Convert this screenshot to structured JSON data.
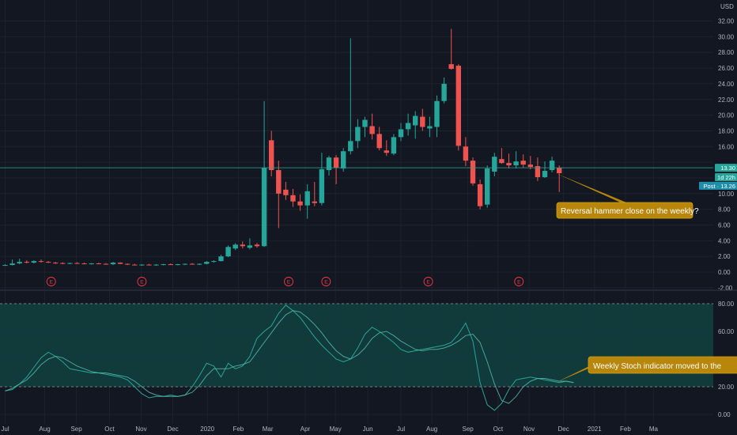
{
  "chart_data": [
    {
      "type": "candlestick",
      "title": "",
      "currency_label": "USD",
      "y_ticks": [
        -2,
        0,
        2,
        4,
        6,
        8,
        10,
        12,
        14,
        16,
        18,
        20,
        22,
        24,
        26,
        28,
        30,
        32
      ],
      "ylim": [
        -2,
        34
      ],
      "x_labels": [
        {
          "label": "Jul",
          "week": 0
        },
        {
          "label": "Aug",
          "week": 5.5
        },
        {
          "label": "Sep",
          "week": 9.9
        },
        {
          "label": "Oct",
          "week": 14.5
        },
        {
          "label": "Nov",
          "week": 18.9
        },
        {
          "label": "Dec",
          "week": 23.3
        },
        {
          "label": "2020",
          "week": 28.1
        },
        {
          "label": "Feb",
          "week": 32.4
        },
        {
          "label": "Mar",
          "week": 36.5
        },
        {
          "label": "Apr",
          "week": 41.7
        },
        {
          "label": "May",
          "week": 45.9
        },
        {
          "label": "Jun",
          "week": 50.4
        },
        {
          "label": "Jul",
          "week": 55.0
        },
        {
          "label": "Aug",
          "week": 59.3
        },
        {
          "label": "Sep",
          "week": 64.3
        },
        {
          "label": "Oct",
          "week": 68.5
        },
        {
          "label": "Nov",
          "week": 72.8
        },
        {
          "label": "Dec",
          "week": 77.6
        },
        {
          "label": "2021",
          "week": 81.9
        },
        {
          "label": "Feb",
          "week": 86.2
        },
        {
          "label": "Ma",
          "week": 90.1
        }
      ],
      "candles": [
        {
          "o": 0.85,
          "h": 1.0,
          "l": 0.8,
          "c": 0.9
        },
        {
          "o": 0.9,
          "h": 1.6,
          "l": 0.85,
          "c": 1.1
        },
        {
          "o": 1.1,
          "h": 1.7,
          "l": 1.0,
          "c": 1.3
        },
        {
          "o": 1.3,
          "h": 1.5,
          "l": 1.1,
          "c": 1.2
        },
        {
          "o": 1.2,
          "h": 1.5,
          "l": 1.1,
          "c": 1.4
        },
        {
          "o": 1.4,
          "h": 1.6,
          "l": 1.2,
          "c": 1.3
        },
        {
          "o": 1.3,
          "h": 1.4,
          "l": 1.15,
          "c": 1.2
        },
        {
          "o": 1.2,
          "h": 1.3,
          "l": 1.05,
          "c": 1.15
        },
        {
          "o": 1.15,
          "h": 1.25,
          "l": 1.0,
          "c": 1.1
        },
        {
          "o": 1.1,
          "h": 1.2,
          "l": 1.0,
          "c": 1.15
        },
        {
          "o": 1.15,
          "h": 1.25,
          "l": 1.05,
          "c": 1.1
        },
        {
          "o": 1.1,
          "h": 1.2,
          "l": 1.0,
          "c": 1.05
        },
        {
          "o": 1.05,
          "h": 1.15,
          "l": 0.95,
          "c": 1.1
        },
        {
          "o": 1.1,
          "h": 1.2,
          "l": 1.0,
          "c": 1.05
        },
        {
          "o": 1.05,
          "h": 1.15,
          "l": 0.95,
          "c": 1.0
        },
        {
          "o": 1.0,
          "h": 1.3,
          "l": 0.9,
          "c": 1.2
        },
        {
          "o": 1.2,
          "h": 1.25,
          "l": 1.0,
          "c": 1.05
        },
        {
          "o": 1.05,
          "h": 1.1,
          "l": 0.9,
          "c": 0.95
        },
        {
          "o": 0.95,
          "h": 1.05,
          "l": 0.85,
          "c": 0.9
        },
        {
          "o": 0.9,
          "h": 1.0,
          "l": 0.8,
          "c": 0.95
        },
        {
          "o": 0.95,
          "h": 1.05,
          "l": 0.85,
          "c": 0.9
        },
        {
          "o": 0.9,
          "h": 1.0,
          "l": 0.8,
          "c": 0.95
        },
        {
          "o": 0.95,
          "h": 1.05,
          "l": 0.85,
          "c": 1.0
        },
        {
          "o": 1.0,
          "h": 1.1,
          "l": 0.9,
          "c": 0.95
        },
        {
          "o": 0.95,
          "h": 1.05,
          "l": 0.85,
          "c": 1.0
        },
        {
          "o": 1.0,
          "h": 1.1,
          "l": 0.9,
          "c": 1.05
        },
        {
          "o": 1.05,
          "h": 1.15,
          "l": 0.95,
          "c": 1.0
        },
        {
          "o": 1.0,
          "h": 1.1,
          "l": 0.9,
          "c": 1.05
        },
        {
          "o": 1.05,
          "h": 1.4,
          "l": 1.0,
          "c": 1.3
        },
        {
          "o": 1.3,
          "h": 1.5,
          "l": 1.2,
          "c": 1.4
        },
        {
          "o": 1.4,
          "h": 2.2,
          "l": 1.35,
          "c": 2.0
        },
        {
          "o": 2.0,
          "h": 3.4,
          "l": 1.9,
          "c": 3.2
        },
        {
          "o": 3.0,
          "h": 3.7,
          "l": 2.8,
          "c": 3.5
        },
        {
          "o": 3.5,
          "h": 3.9,
          "l": 3.0,
          "c": 3.3
        },
        {
          "o": 3.1,
          "h": 4.3,
          "l": 2.9,
          "c": 3.4
        },
        {
          "o": 3.5,
          "h": 3.7,
          "l": 3.1,
          "c": 3.3
        },
        {
          "o": 3.3,
          "h": 21.8,
          "l": 3.2,
          "c": 13.3
        },
        {
          "o": 16.8,
          "h": 18.0,
          "l": 12.2,
          "c": 13.0
        },
        {
          "o": 13.0,
          "h": 14.2,
          "l": 5.6,
          "c": 10.0
        },
        {
          "o": 10.5,
          "h": 11.5,
          "l": 9.2,
          "c": 9.8
        },
        {
          "o": 9.8,
          "h": 10.6,
          "l": 8.3,
          "c": 9.0
        },
        {
          "o": 9.0,
          "h": 9.9,
          "l": 7.8,
          "c": 8.5
        },
        {
          "o": 8.5,
          "h": 11.2,
          "l": 6.8,
          "c": 10.3
        },
        {
          "o": 9.0,
          "h": 11.5,
          "l": 8.4,
          "c": 8.8
        },
        {
          "o": 8.8,
          "h": 15.2,
          "l": 8.5,
          "c": 13.1
        },
        {
          "o": 13.0,
          "h": 14.8,
          "l": 12.3,
          "c": 14.6
        },
        {
          "o": 14.6,
          "h": 14.9,
          "l": 11.2,
          "c": 13.3
        },
        {
          "o": 13.2,
          "h": 15.8,
          "l": 12.8,
          "c": 15.4
        },
        {
          "o": 15.4,
          "h": 29.8,
          "l": 15.0,
          "c": 16.7
        },
        {
          "o": 16.7,
          "h": 19.5,
          "l": 15.8,
          "c": 18.5
        },
        {
          "o": 18.5,
          "h": 19.8,
          "l": 17.2,
          "c": 19.4
        },
        {
          "o": 18.6,
          "h": 20.2,
          "l": 16.9,
          "c": 17.6
        },
        {
          "o": 17.6,
          "h": 18.5,
          "l": 15.5,
          "c": 15.8
        },
        {
          "o": 15.5,
          "h": 16.8,
          "l": 14.8,
          "c": 15.2
        },
        {
          "o": 15.1,
          "h": 17.6,
          "l": 14.9,
          "c": 17.2
        },
        {
          "o": 17.2,
          "h": 19.0,
          "l": 16.7,
          "c": 18.2
        },
        {
          "o": 18.2,
          "h": 20.2,
          "l": 17.4,
          "c": 19.0
        },
        {
          "o": 18.7,
          "h": 20.5,
          "l": 17.0,
          "c": 19.9
        },
        {
          "o": 19.8,
          "h": 20.8,
          "l": 18.0,
          "c": 18.5
        },
        {
          "o": 18.3,
          "h": 19.8,
          "l": 17.2,
          "c": 18.6
        },
        {
          "o": 18.5,
          "h": 22.5,
          "l": 17.2,
          "c": 21.8
        },
        {
          "o": 21.8,
          "h": 24.8,
          "l": 21.5,
          "c": 24.0
        },
        {
          "o": 26.5,
          "h": 31.0,
          "l": 25.8,
          "c": 25.9
        },
        {
          "o": 26.3,
          "h": 26.5,
          "l": 15.5,
          "c": 16.1
        },
        {
          "o": 16.0,
          "h": 17.2,
          "l": 13.5,
          "c": 14.2
        },
        {
          "o": 14.2,
          "h": 14.6,
          "l": 11.0,
          "c": 11.3
        },
        {
          "o": 11.2,
          "h": 11.8,
          "l": 8.0,
          "c": 8.4
        },
        {
          "o": 8.6,
          "h": 13.6,
          "l": 8.2,
          "c": 13.2
        },
        {
          "o": 12.8,
          "h": 15.2,
          "l": 12.2,
          "c": 14.7
        },
        {
          "o": 14.4,
          "h": 15.8,
          "l": 13.8,
          "c": 13.9
        },
        {
          "o": 13.9,
          "h": 15.1,
          "l": 13.2,
          "c": 13.6
        },
        {
          "o": 13.6,
          "h": 15.4,
          "l": 13.2,
          "c": 14.1
        },
        {
          "o": 14.2,
          "h": 15.0,
          "l": 13.3,
          "c": 13.7
        },
        {
          "o": 13.7,
          "h": 14.8,
          "l": 13.1,
          "c": 13.4
        },
        {
          "o": 13.5,
          "h": 14.6,
          "l": 11.6,
          "c": 12.1
        },
        {
          "o": 12.1,
          "h": 14.1,
          "l": 12.0,
          "c": 12.9
        },
        {
          "o": 13.0,
          "h": 14.7,
          "l": 12.7,
          "c": 14.2
        },
        {
          "o": 13.3,
          "h": 13.6,
          "l": 10.2,
          "c": 12.6
        }
      ],
      "earnings_weeks": [
        6.4,
        19.0,
        39.4,
        44.6,
        58.8,
        71.4
      ],
      "earnings_label": "E",
      "current_price": 13.26,
      "price_line": 13.3,
      "price_tags": [
        {
          "label": "13.30",
          "value": 13.3
        },
        {
          "label": "1d 22h",
          "value": 12.1
        },
        {
          "label": "Post · 13.26",
          "value": 11.0
        }
      ],
      "annotation": {
        "text": "Reversal hammer close on the weekly?",
        "week": 76.5,
        "value": 12.6
      }
    },
    {
      "type": "line",
      "title": "",
      "y_ticks": [
        0,
        20,
        40,
        60,
        80
      ],
      "ylim": [
        -4,
        90
      ],
      "band": [
        20,
        80
      ],
      "series": [
        {
          "values": [
            17,
            18,
            22,
            27,
            34,
            41,
            45,
            42,
            38,
            33,
            32,
            31,
            30,
            30,
            29,
            28,
            27,
            25,
            20,
            15,
            12,
            13,
            13,
            14,
            13,
            14,
            20,
            28,
            37,
            35,
            27,
            37,
            33,
            35,
            42,
            55,
            60,
            64,
            73,
            79,
            75,
            70,
            63,
            56,
            50,
            45,
            40,
            38,
            40,
            48,
            58,
            63,
            60,
            56,
            52,
            47,
            45,
            46,
            47,
            48,
            49,
            50,
            52,
            58,
            66,
            53,
            23,
            7,
            3,
            8,
            18,
            25,
            26,
            27,
            26,
            25,
            24,
            23,
            24,
            23
          ]
        },
        {
          "values": [
            17,
            19,
            22,
            25,
            30,
            36,
            40,
            42,
            41,
            38,
            35,
            33,
            31,
            30,
            30,
            29,
            28,
            27,
            24,
            20,
            16,
            14,
            13,
            13,
            13,
            14,
            16,
            21,
            28,
            33,
            33,
            33,
            35,
            36,
            38,
            45,
            52,
            59,
            66,
            72,
            75,
            74,
            70,
            65,
            59,
            52,
            46,
            42,
            40,
            43,
            48,
            55,
            59,
            60,
            57,
            53,
            50,
            47,
            46,
            47,
            47,
            48,
            50,
            53,
            57,
            58,
            52,
            38,
            22,
            10,
            8,
            13,
            20,
            24,
            26,
            26,
            25,
            24,
            24,
            23
          ]
        }
      ],
      "annotation": {
        "text": "Weekly Stoch indicator moved to the",
        "week": 76.5,
        "value": 23
      }
    }
  ],
  "colors": {
    "background": "#131722",
    "grid": "#1e222d",
    "text": "#b2b5be",
    "up": "#26a69a",
    "down": "#ef5350",
    "stoch_k": "#26a69a",
    "stoch_d": "#56b8a8",
    "band_fill": "#123e3e",
    "band_line": "#787b86",
    "price_line": "#26a69a",
    "annotation_bg": "#b7860b",
    "annotation_border": "#d4a017",
    "earnings": "#f23645",
    "divider": "#363a45"
  }
}
